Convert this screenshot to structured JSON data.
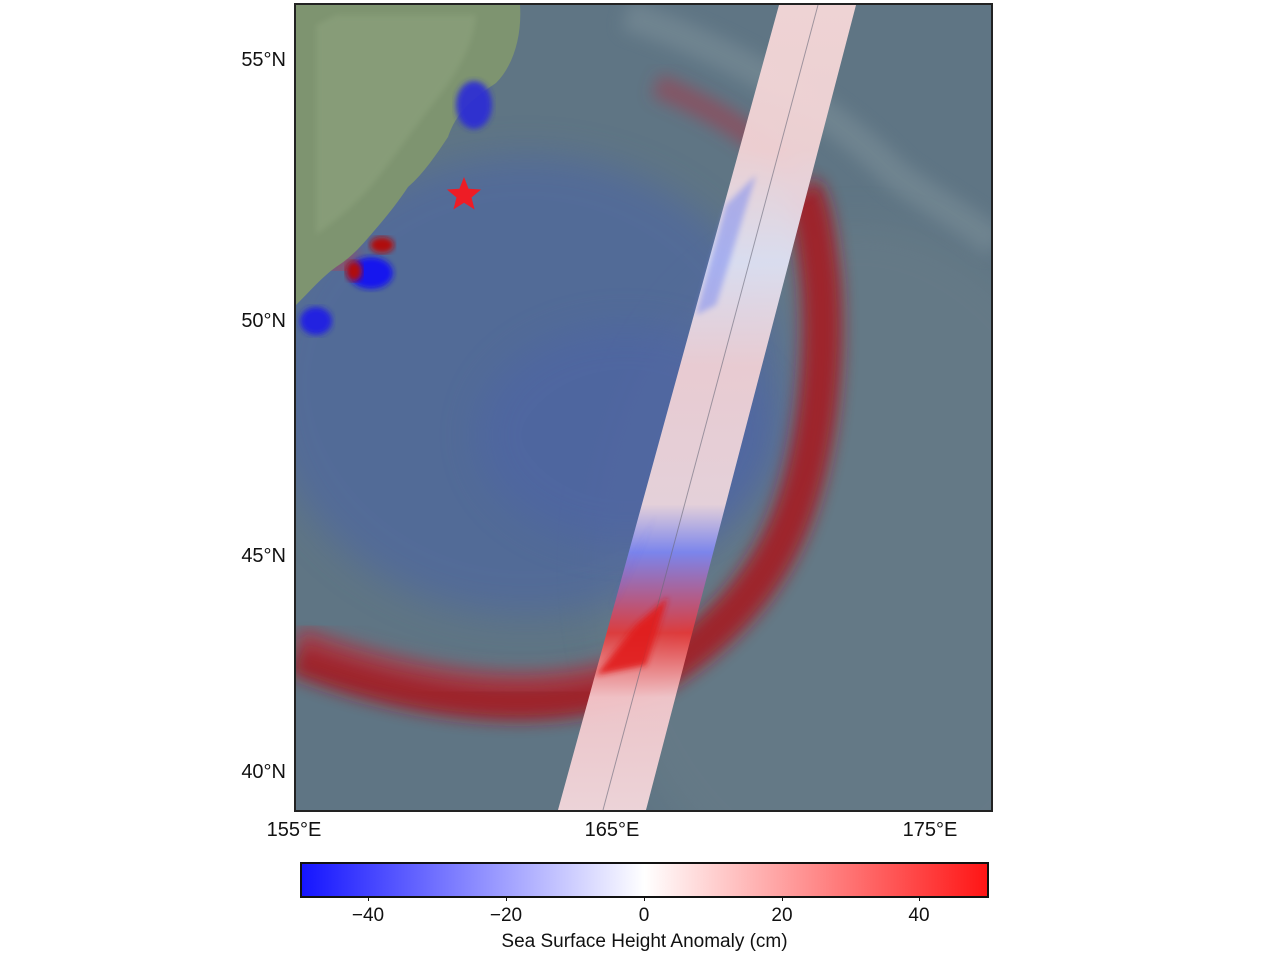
{
  "map": {
    "y_axis_ticks": [
      "55°N",
      "50°N",
      "45°N",
      "40°N"
    ],
    "x_axis_ticks": [
      "155°E",
      "165°E",
      "175°E"
    ],
    "epicenter_marker": "star-icon",
    "colors": {
      "ocean": "#5f7584",
      "land": "#7e9470",
      "negative_anomaly": "#2a2ad8",
      "positive_anomaly": "#b01010",
      "epicenter": "#ee1c25"
    }
  },
  "colorbar": {
    "label": "Sea Surface Height Anomaly (cm)",
    "ticks": [
      "−40",
      "−20",
      "0",
      "20",
      "40"
    ],
    "range": [
      -50,
      50
    ],
    "colormap": [
      "#1515ff",
      "#ffffff",
      "#ff1515"
    ]
  }
}
